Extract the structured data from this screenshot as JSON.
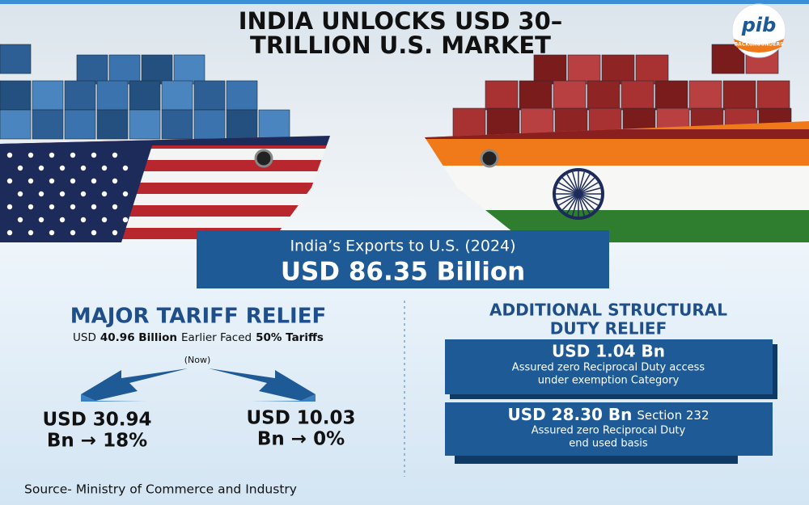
{
  "header": {
    "title_lines": [
      "INDIA UNLOCKS USD 30–",
      "TRILLION U.S. MARKET"
    ],
    "logo": {
      "mark": "pib",
      "tagline": "BACKGROUNDERS"
    }
  },
  "exports": {
    "label": "India’s Exports to U.S. (2024)",
    "value": "USD 86.35 Billion"
  },
  "major_relief": {
    "title": "MAJOR TARIFF RELIEF",
    "subtitle_parts": [
      "USD",
      "40.96 Billion",
      "Earlier Faced",
      "50% Tariffs"
    ],
    "now": "(Now)",
    "items": [
      {
        "line1": "USD 30.94",
        "line2": "Bn → 18%"
      },
      {
        "line1": "USD 10.03",
        "line2": "Bn → 0%"
      }
    ]
  },
  "structural_relief": {
    "title_lines": [
      "ADDITIONAL STRUCTURAL",
      "DUTY RELIEF"
    ],
    "boxes": [
      {
        "amount": "USD 1.04 Bn",
        "lines": [
          "Assured zero Reciprocal Duty access",
          "under exemption Category"
        ]
      },
      {
        "amount": "USD 28.30 Bn",
        "note": "Section 232",
        "lines": [
          "Assured zero Reciprocal Duty",
          "end used basis"
        ]
      }
    ]
  },
  "source": "Source- Ministry of Commerce and Industry"
}
